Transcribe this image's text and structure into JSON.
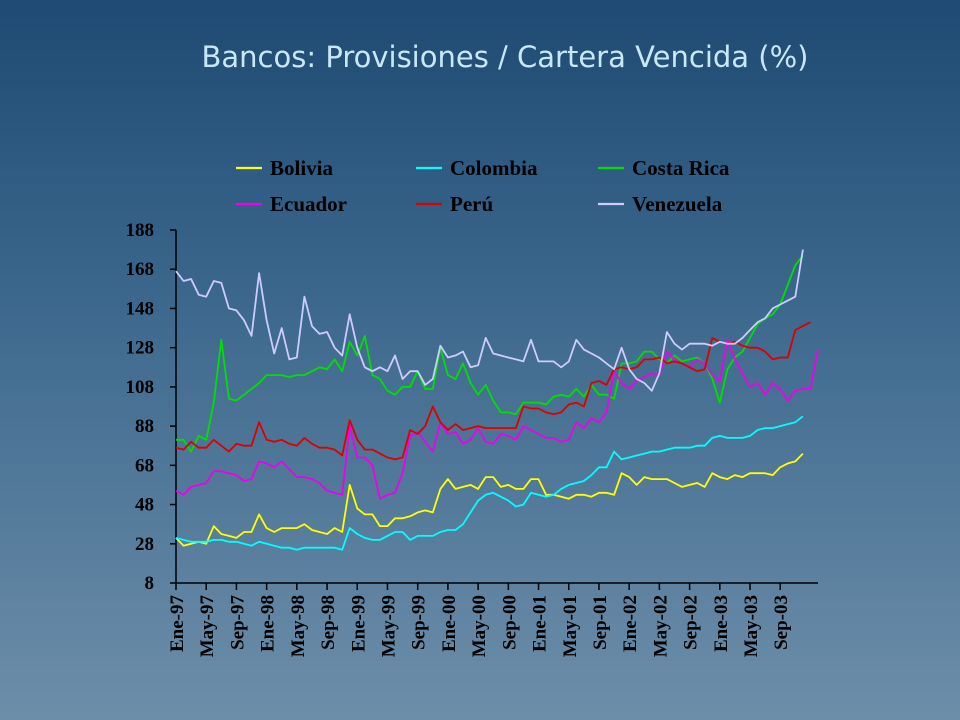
{
  "title": "Bancos: Provisiones / Cartera Vencida (%)",
  "chart_data": {
    "type": "line",
    "title": "Bancos: Provisiones / Cartera Vencida (%)",
    "xlabel": "",
    "ylabel": "",
    "ylim": [
      8,
      188
    ],
    "yticks": [
      8,
      28,
      48,
      68,
      88,
      108,
      128,
      148,
      168,
      188
    ],
    "x_start": "Ene-97",
    "x_tick_labels": [
      "Ene-97",
      "May-97",
      "Sep-97",
      "Ene-98",
      "May-98",
      "Sep-98",
      "Ene-99",
      "May-99",
      "Sep-99",
      "Ene-00",
      "May-00",
      "Sep-00",
      "Ene-01",
      "May-01",
      "Sep-01",
      "Ene-02",
      "May-02",
      "Sep-02",
      "Ene-03",
      "May-03",
      "Sep-03"
    ],
    "grid": false,
    "legend_position": "top",
    "series": [
      {
        "name": "Bolivia",
        "color": "#ffff00",
        "values": [
          31,
          27,
          28,
          29,
          28,
          37,
          33,
          32,
          31,
          34,
          34,
          43,
          36,
          34,
          36,
          36,
          36,
          38,
          35,
          34,
          33,
          36,
          34,
          58,
          46,
          43,
          43,
          37,
          37,
          41,
          41,
          42,
          44,
          45,
          44,
          56,
          61,
          56,
          57,
          58,
          56,
          62,
          62,
          57,
          58,
          56,
          56,
          61,
          61,
          53,
          53,
          52,
          51,
          53,
          53,
          52,
          54,
          54,
          53,
          64,
          62,
          58,
          62,
          61,
          61,
          61,
          59,
          57,
          58,
          59,
          57,
          64,
          62,
          61,
          63,
          62,
          64,
          64,
          64,
          63,
          67,
          69,
          70,
          74
        ]
      },
      {
        "name": "Colombia",
        "color": "#00ffff",
        "values": [
          31,
          30,
          29,
          29,
          29,
          30,
          30,
          29,
          29,
          28,
          27,
          29,
          28,
          27,
          26,
          26,
          25,
          26,
          26,
          26,
          26,
          26,
          25,
          36,
          33,
          31,
          30,
          30,
          32,
          34,
          34,
          30,
          32,
          32,
          32,
          34,
          35,
          35,
          38,
          44,
          50,
          53,
          54,
          52,
          50,
          47,
          48,
          54,
          53,
          52,
          53,
          56,
          58,
          59,
          60,
          63,
          67,
          67,
          75,
          71,
          72,
          73,
          74,
          75,
          75,
          76,
          77,
          77,
          77,
          78,
          78,
          82,
          83,
          82,
          82,
          82,
          83,
          86,
          87,
          87,
          88,
          89,
          90,
          93
        ]
      },
      {
        "name": "Costa Rica",
        "color": "#00e000",
        "values": [
          81,
          81,
          75,
          83,
          81,
          100,
          132,
          102,
          101,
          104,
          107,
          110,
          114,
          114,
          114,
          113,
          114,
          114,
          116,
          118,
          117,
          122,
          116,
          131,
          124,
          134,
          114,
          112,
          106,
          104,
          108,
          108,
          116,
          107,
          107,
          128,
          114,
          112,
          120,
          110,
          104,
          109,
          101,
          95,
          95,
          94,
          100,
          100,
          100,
          99,
          103,
          104,
          103,
          107,
          103,
          109,
          104,
          104,
          102,
          120,
          120,
          121,
          126,
          126,
          122,
          120,
          124,
          121,
          122,
          123,
          120,
          112,
          100,
          117,
          123,
          126,
          133,
          140,
          143,
          145,
          150,
          160,
          170,
          175
        ]
      },
      {
        "name": "Ecuador",
        "color": "#ee00ee",
        "values": [
          55,
          53,
          57,
          58,
          59,
          65,
          65,
          64,
          63,
          60,
          61,
          70,
          69,
          67,
          70,
          66,
          62,
          62,
          61,
          59,
          55,
          54,
          53,
          88,
          72,
          72,
          68,
          51,
          53,
          54,
          64,
          83,
          85,
          80,
          75,
          90,
          84,
          85,
          79,
          81,
          87,
          80,
          79,
          84,
          83,
          81,
          88,
          86,
          84,
          82,
          82,
          80,
          81,
          90,
          87,
          92,
          90,
          95,
          116,
          110,
          107,
          111,
          113,
          115,
          114,
          126,
          122,
          120,
          118,
          122,
          120,
          114,
          111,
          132,
          122,
          115,
          108,
          110,
          104,
          110,
          107,
          101,
          106,
          107,
          107,
          127
        ]
      },
      {
        "name": "Perú",
        "color": "#dd0000",
        "values": [
          77,
          76,
          80,
          77,
          77,
          81,
          78,
          75,
          79,
          78,
          78,
          90,
          81,
          80,
          81,
          79,
          78,
          82,
          79,
          77,
          77,
          76,
          73,
          91,
          81,
          76,
          76,
          74,
          72,
          71,
          72,
          86,
          84,
          88,
          98,
          90,
          86,
          89,
          86,
          87,
          88,
          87,
          87,
          87,
          87,
          87,
          98,
          97,
          97,
          95,
          94,
          95,
          99,
          100,
          98,
          110,
          111,
          109,
          117,
          118,
          117,
          118,
          122,
          122,
          123,
          120,
          121,
          120,
          118,
          116,
          117,
          133,
          131,
          130,
          131,
          129,
          128,
          128,
          126,
          122,
          123,
          123,
          137,
          139,
          141
        ]
      },
      {
        "name": "Venezuela",
        "color": "#ccccff",
        "values": [
          167,
          162,
          163,
          155,
          154,
          162,
          161,
          148,
          147,
          142,
          134,
          166,
          142,
          125,
          138,
          122,
          123,
          154,
          139,
          135,
          136,
          128,
          124,
          145,
          128,
          118,
          116,
          118,
          116,
          124,
          112,
          116,
          116,
          109,
          112,
          129,
          123,
          124,
          126,
          118,
          119,
          133,
          125,
          124,
          123,
          122,
          121,
          132,
          121,
          121,
          121,
          118,
          121,
          132,
          127,
          125,
          123,
          120,
          117,
          128,
          117,
          112,
          110,
          106,
          115,
          136,
          130,
          127,
          130,
          130,
          130,
          129,
          131,
          130,
          130,
          133,
          137,
          141,
          143,
          148,
          150,
          152,
          154,
          178
        ]
      }
    ]
  }
}
